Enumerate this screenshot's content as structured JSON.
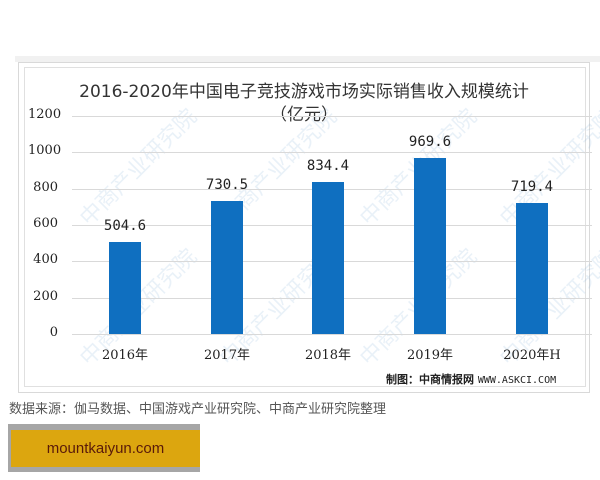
{
  "chart": {
    "title_line1": "2016-2020年中国电子竞技游戏市场实际销售收入规模统计",
    "title_line2": "（亿元）",
    "credit_label": "制图：中商情报网",
    "credit_url": "WWW.ASKCI.COM",
    "watermark": "中商产业研究院"
  },
  "yticks": [
    "0",
    "200",
    "400",
    "600",
    "800",
    "1000",
    "1200"
  ],
  "bars": [
    {
      "category": "2016年",
      "value": 504.6,
      "label": "504.6"
    },
    {
      "category": "2017年",
      "value": 730.5,
      "label": "730.5"
    },
    {
      "category": "2018年",
      "value": 834.4,
      "label": "834.4"
    },
    {
      "category": "2019年",
      "value": 969.6,
      "label": "969.6"
    },
    {
      "category": "2020年H",
      "value": 719.4,
      "label": "719.4"
    }
  ],
  "source": "数据来源：伽马数据、中国游戏产业研究院、中商产业研究院整理",
  "banner": {
    "text": "mountkaiyun.com"
  },
  "colors": {
    "bar": "#0f6fc0",
    "banner": "#dca60f",
    "banner_text": "#5a1a0a"
  },
  "chart_data": {
    "type": "bar",
    "title": "2016-2020年中国电子竞技游戏市场实际销售收入规模统计（亿元）",
    "categories": [
      "2016年",
      "2017年",
      "2018年",
      "2019年",
      "2020年H"
    ],
    "values": [
      504.6,
      730.5,
      834.4,
      969.6,
      719.4
    ],
    "xlabel": "",
    "ylabel": "亿元",
    "ylim": [
      0,
      1200
    ],
    "yticks": [
      0,
      200,
      400,
      600,
      800,
      1000,
      1200
    ],
    "grid": true,
    "legend": "none",
    "data_labels": true,
    "source": "数据来源：伽马数据、中国游戏产业研究院、中商产业研究院整理",
    "credit": "制图：中商情报网 WWW.ASKCI.COM"
  }
}
